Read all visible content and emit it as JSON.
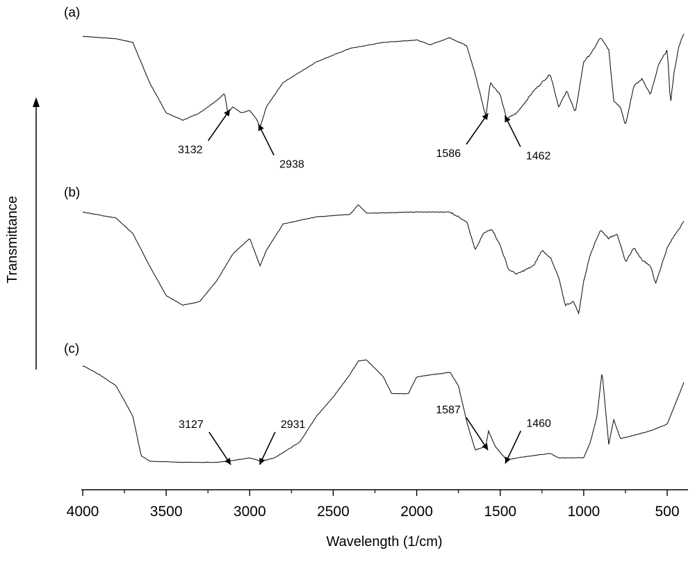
{
  "chart_data": {
    "type": "line",
    "title": "",
    "xlabel": "Wavelength (1/cm)",
    "ylabel": "Transmittance",
    "xlim": [
      4000,
      400
    ],
    "x_ticks": [
      "4000",
      "3500",
      "3000",
      "2500",
      "2000",
      "1500",
      "1000",
      "500"
    ],
    "y_scale": "relative (offset spectra, no tick values)",
    "grid": false,
    "legend": "none",
    "series": [
      {
        "name": "(a)",
        "label": "(a)",
        "points": [
          [
            4000,
            0.93
          ],
          [
            3900,
            0.92
          ],
          [
            3800,
            0.91
          ],
          [
            3700,
            0.88
          ],
          [
            3600,
            0.55
          ],
          [
            3500,
            0.3
          ],
          [
            3400,
            0.24
          ],
          [
            3300,
            0.3
          ],
          [
            3200,
            0.4
          ],
          [
            3150,
            0.46
          ],
          [
            3132,
            0.3
          ],
          [
            3100,
            0.35
          ],
          [
            3050,
            0.3
          ],
          [
            3000,
            0.32
          ],
          [
            2960,
            0.25
          ],
          [
            2938,
            0.18
          ],
          [
            2900,
            0.35
          ],
          [
            2800,
            0.55
          ],
          [
            2600,
            0.72
          ],
          [
            2400,
            0.83
          ],
          [
            2200,
            0.88
          ],
          [
            2000,
            0.9
          ],
          [
            1920,
            0.86
          ],
          [
            1800,
            0.92
          ],
          [
            1700,
            0.85
          ],
          [
            1650,
            0.62
          ],
          [
            1586,
            0.27
          ],
          [
            1560,
            0.55
          ],
          [
            1500,
            0.45
          ],
          [
            1462,
            0.25
          ],
          [
            1400,
            0.3
          ],
          [
            1300,
            0.48
          ],
          [
            1200,
            0.62
          ],
          [
            1150,
            0.35
          ],
          [
            1100,
            0.48
          ],
          [
            1050,
            0.3
          ],
          [
            1000,
            0.72
          ],
          [
            950,
            0.8
          ],
          [
            900,
            0.92
          ],
          [
            850,
            0.82
          ],
          [
            820,
            0.4
          ],
          [
            780,
            0.35
          ],
          [
            750,
            0.2
          ],
          [
            700,
            0.52
          ],
          [
            650,
            0.58
          ],
          [
            600,
            0.45
          ],
          [
            550,
            0.7
          ],
          [
            500,
            0.82
          ],
          [
            480,
            0.38
          ],
          [
            460,
            0.62
          ],
          [
            430,
            0.85
          ],
          [
            400,
            0.95
          ]
        ],
        "annotations": [
          {
            "x": 3132,
            "label": "3132"
          },
          {
            "x": 2938,
            "label": "2938"
          },
          {
            "x": 1586,
            "label": "1586"
          },
          {
            "x": 1462,
            "label": "1462"
          }
        ]
      },
      {
        "name": "(b)",
        "label": "(b)",
        "points": [
          [
            4000,
            0.9
          ],
          [
            3800,
            0.85
          ],
          [
            3700,
            0.72
          ],
          [
            3600,
            0.45
          ],
          [
            3500,
            0.2
          ],
          [
            3400,
            0.12
          ],
          [
            3300,
            0.15
          ],
          [
            3200,
            0.32
          ],
          [
            3100,
            0.55
          ],
          [
            3000,
            0.68
          ],
          [
            2938,
            0.45
          ],
          [
            2900,
            0.58
          ],
          [
            2800,
            0.8
          ],
          [
            2600,
            0.86
          ],
          [
            2400,
            0.88
          ],
          [
            2350,
            0.96
          ],
          [
            2300,
            0.89
          ],
          [
            2000,
            0.9
          ],
          [
            1800,
            0.9
          ],
          [
            1700,
            0.82
          ],
          [
            1650,
            0.58
          ],
          [
            1600,
            0.72
          ],
          [
            1550,
            0.76
          ],
          [
            1500,
            0.62
          ],
          [
            1450,
            0.42
          ],
          [
            1400,
            0.38
          ],
          [
            1300,
            0.45
          ],
          [
            1250,
            0.58
          ],
          [
            1200,
            0.52
          ],
          [
            1150,
            0.35
          ],
          [
            1110,
            0.12
          ],
          [
            1060,
            0.15
          ],
          [
            1030,
            0.05
          ],
          [
            1000,
            0.32
          ],
          [
            960,
            0.55
          ],
          [
            900,
            0.75
          ],
          [
            850,
            0.68
          ],
          [
            800,
            0.72
          ],
          [
            750,
            0.48
          ],
          [
            700,
            0.6
          ],
          [
            650,
            0.5
          ],
          [
            600,
            0.45
          ],
          [
            570,
            0.3
          ],
          [
            500,
            0.6
          ],
          [
            450,
            0.72
          ],
          [
            400,
            0.82
          ]
        ]
      },
      {
        "name": "(c)",
        "label": "(c)",
        "points": [
          [
            4000,
            0.9
          ],
          [
            3900,
            0.82
          ],
          [
            3800,
            0.72
          ],
          [
            3700,
            0.45
          ],
          [
            3650,
            0.1
          ],
          [
            3600,
            0.05
          ],
          [
            3400,
            0.04
          ],
          [
            3200,
            0.04
          ],
          [
            3127,
            0.05
          ],
          [
            3000,
            0.08
          ],
          [
            2931,
            0.05
          ],
          [
            2850,
            0.08
          ],
          [
            2700,
            0.22
          ],
          [
            2600,
            0.45
          ],
          [
            2500,
            0.62
          ],
          [
            2400,
            0.82
          ],
          [
            2350,
            0.94
          ],
          [
            2300,
            0.95
          ],
          [
            2200,
            0.8
          ],
          [
            2150,
            0.65
          ],
          [
            2050,
            0.65
          ],
          [
            2000,
            0.8
          ],
          [
            1900,
            0.82
          ],
          [
            1800,
            0.84
          ],
          [
            1750,
            0.72
          ],
          [
            1700,
            0.4
          ],
          [
            1650,
            0.15
          ],
          [
            1587,
            0.18
          ],
          [
            1570,
            0.32
          ],
          [
            1530,
            0.18
          ],
          [
            1460,
            0.06
          ],
          [
            1400,
            0.08
          ],
          [
            1300,
            0.1
          ],
          [
            1200,
            0.12
          ],
          [
            1150,
            0.08
          ],
          [
            1000,
            0.08
          ],
          [
            960,
            0.22
          ],
          [
            920,
            0.45
          ],
          [
            890,
            0.85
          ],
          [
            870,
            0.52
          ],
          [
            850,
            0.2
          ],
          [
            820,
            0.42
          ],
          [
            780,
            0.25
          ],
          [
            700,
            0.28
          ],
          [
            600,
            0.32
          ],
          [
            500,
            0.38
          ],
          [
            400,
            0.75
          ]
        ],
        "annotations": [
          {
            "x": 3127,
            "label": "3127"
          },
          {
            "x": 2931,
            "label": "2931"
          },
          {
            "x": 1587,
            "label": "1587"
          },
          {
            "x": 1460,
            "label": "1460"
          }
        ]
      }
    ]
  }
}
